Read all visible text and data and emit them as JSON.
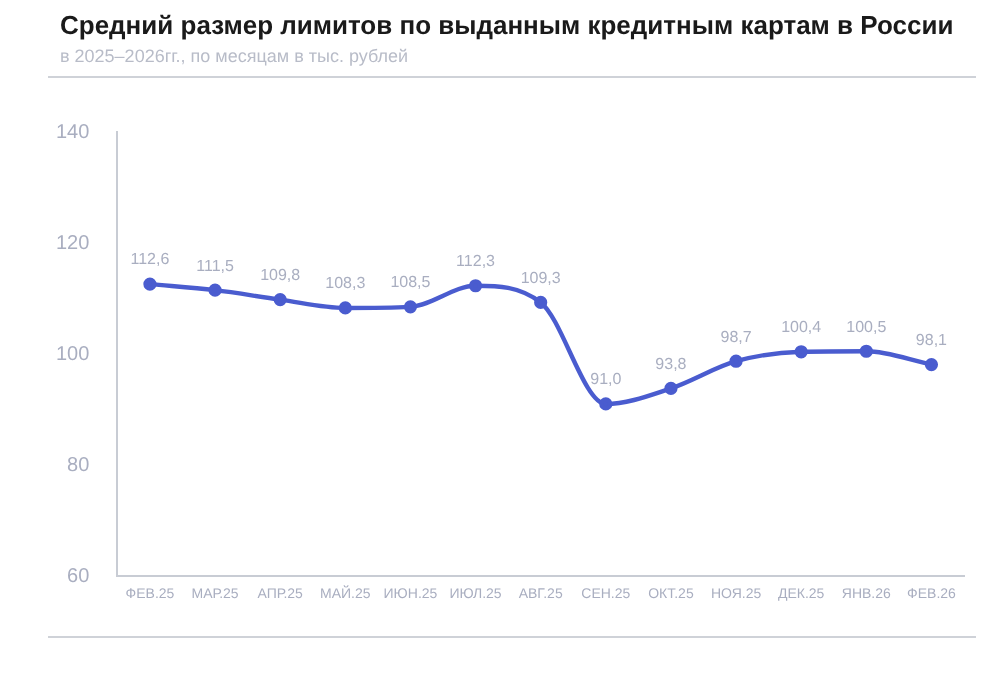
{
  "chart_data": {
    "type": "line",
    "title": "Средний размер лимитов по выданным кредитным картам в России",
    "subtitle": "в 2025–2026гг., по месяцам в тыс. рублей",
    "categories": [
      "ФЕВ.25",
      "МАР.25",
      "АПР.25",
      "МАЙ.25",
      "ИЮН.25",
      "ИЮЛ.25",
      "АВГ.25",
      "СЕН.25",
      "ОКТ.25",
      "НОЯ.25",
      "ДЕК.25",
      "ЯНВ.26",
      "ФЕВ.26"
    ],
    "series": [
      {
        "color": "#4a5ccf",
        "values": [
          112.6,
          111.5,
          109.8,
          108.3,
          108.5,
          112.3,
          109.3,
          91.0,
          93.8,
          98.7,
          100.4,
          100.5,
          98.1
        ],
        "value_labels": [
          "112,6",
          "111,5",
          "109,8",
          "108,3",
          "108,5",
          "112,3",
          "109,3",
          "91,0",
          "93,8",
          "98,7",
          "100,4",
          "100,5",
          "98,1"
        ]
      }
    ],
    "ylim": [
      60,
      140
    ],
    "yticks": [
      60,
      80,
      100,
      120,
      140
    ],
    "grid": false,
    "legend": false,
    "marker": "circle",
    "line_style": "solid"
  }
}
